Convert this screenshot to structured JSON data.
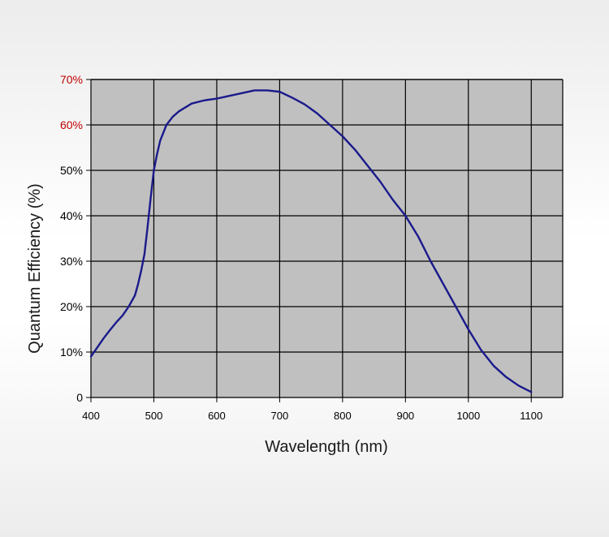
{
  "chart_data": {
    "type": "line",
    "title": "",
    "xlabel": "Wavelength (nm)",
    "ylabel": "Quantum Efficiency (%)",
    "xlim": [
      400,
      1150
    ],
    "ylim": [
      0,
      70
    ],
    "x_ticks": [
      400,
      500,
      600,
      700,
      800,
      900,
      1000,
      1100
    ],
    "y_ticks": [
      {
        "value": 0,
        "label": "0"
      },
      {
        "value": 10,
        "label": "10%"
      },
      {
        "value": 20,
        "label": "20%"
      },
      {
        "value": 30,
        "label": "30%"
      },
      {
        "value": 40,
        "label": "40%"
      },
      {
        "value": 50,
        "label": "50%"
      },
      {
        "value": 60,
        "label": "60%"
      },
      {
        "value": 70,
        "label": "70%"
      }
    ],
    "grid": true,
    "legend": "none",
    "colors": {
      "plot_background": "#c0c0c0",
      "grid": "#000000",
      "line": "#1a1a8c",
      "highlight_tick": "#c00000",
      "tick_text": "#000000"
    },
    "highlighted_y_ticks": [
      60,
      70
    ],
    "series": [
      {
        "x": [
          400,
          410,
          420,
          430,
          440,
          450,
          460,
          470,
          475,
          480,
          485,
          490,
          495,
          500,
          505,
          510,
          520,
          530,
          540,
          560,
          580,
          600,
          620,
          640,
          660,
          680,
          700,
          720,
          740,
          760,
          780,
          800,
          820,
          840,
          860,
          880,
          900,
          920,
          940,
          960,
          980,
          1000,
          1020,
          1040,
          1060,
          1080,
          1100
        ],
        "values": [
          9,
          11,
          13,
          14.8,
          16.5,
          18,
          20,
          22.5,
          25,
          28,
          31.5,
          37.5,
          44,
          50,
          53.5,
          56.5,
          60,
          61.8,
          63,
          64.7,
          65.4,
          65.8,
          66.4,
          67,
          67.6,
          67.6,
          67.3,
          66,
          64.5,
          62.5,
          60,
          57.5,
          54.5,
          51,
          47.5,
          43.5,
          40,
          35.5,
          30,
          25,
          20,
          15,
          10.5,
          7,
          4.5,
          2.6,
          1.2
        ]
      }
    ]
  }
}
